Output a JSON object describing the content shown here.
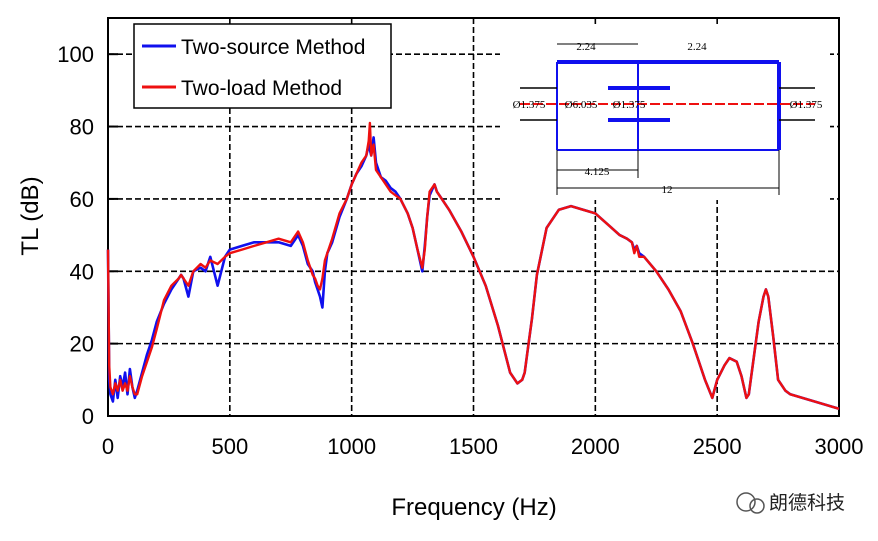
{
  "chart_data": {
    "type": "line",
    "title": "",
    "xlabel": "Frequency (Hz)",
    "ylabel": "TL (dB)",
    "xlim": [
      0,
      3000
    ],
    "ylim": [
      0,
      110
    ],
    "xticks": [
      "0",
      "500",
      "1000",
      "1500",
      "2000",
      "2500",
      "3000"
    ],
    "yticks": [
      "0",
      "20",
      "40",
      "60",
      "80",
      "100"
    ],
    "grid": true,
    "legend_position": "top-left",
    "series": [
      {
        "name": "Two-source Method",
        "color": "#1010ee",
        "x": [
          0,
          5,
          10,
          20,
          30,
          40,
          50,
          60,
          70,
          80,
          90,
          100,
          110,
          120,
          140,
          160,
          180,
          200,
          230,
          260,
          290,
          300,
          310,
          330,
          350,
          380,
          400,
          420,
          450,
          480,
          500,
          550,
          600,
          650,
          700,
          750,
          780,
          800,
          820,
          840,
          850,
          860,
          870,
          880,
          890,
          900,
          920,
          950,
          980,
          1000,
          1020,
          1040,
          1060,
          1070,
          1080,
          1090,
          1100,
          1120,
          1140,
          1160,
          1180,
          1200,
          1230,
          1250,
          1270,
          1290,
          1300,
          1310,
          1320,
          1340,
          1350,
          1370,
          1400,
          1450,
          1500,
          1550,
          1600,
          1650,
          1680,
          1700,
          1710,
          1720,
          1740,
          1760,
          1800,
          1850,
          1900,
          1950,
          2000,
          2050,
          2100,
          2130,
          2150,
          2160,
          2170,
          2180,
          2200,
          2250,
          2300,
          2350,
          2400,
          2450,
          2480,
          2500,
          2530,
          2550,
          2580,
          2600,
          2620,
          2630,
          2650,
          2670,
          2690,
          2700,
          2710,
          2730,
          2750,
          2780,
          2800,
          2850,
          2900,
          2950,
          3000
        ],
        "y": [
          46,
          10,
          6,
          4,
          10,
          5,
          11,
          8,
          12,
          6,
          13,
          8,
          5,
          7,
          12,
          17,
          21,
          26,
          31,
          35,
          38,
          39,
          38,
          33,
          40,
          41,
          40,
          44,
          36,
          44,
          46,
          47,
          48,
          48,
          48,
          47,
          50,
          47,
          42,
          40,
          37,
          35,
          33,
          30,
          40,
          45,
          48,
          55,
          60,
          64,
          67,
          69,
          72,
          75,
          72,
          77,
          70,
          66,
          65,
          63,
          62,
          60,
          56,
          52,
          46,
          40,
          47,
          55,
          61,
          64,
          62,
          60,
          57,
          51,
          44,
          36,
          25,
          12,
          9,
          10,
          12,
          17,
          27,
          39,
          52,
          57,
          58,
          57,
          56,
          53,
          50,
          49,
          48,
          46,
          47,
          45,
          44,
          40,
          35,
          29,
          20,
          10,
          5,
          10,
          14,
          16,
          15,
          11,
          5,
          6,
          16,
          26,
          33,
          35,
          33,
          22,
          10,
          7,
          6,
          5,
          4,
          3,
          2
        ]
      },
      {
        "name": "Two-load Method",
        "color": "#ee1010",
        "x": [
          0,
          5,
          10,
          20,
          30,
          40,
          50,
          60,
          70,
          80,
          90,
          100,
          110,
          120,
          140,
          160,
          180,
          200,
          230,
          260,
          290,
          300,
          310,
          330,
          350,
          380,
          400,
          420,
          450,
          480,
          500,
          550,
          600,
          650,
          700,
          750,
          780,
          800,
          820,
          840,
          850,
          860,
          870,
          880,
          890,
          900,
          920,
          950,
          980,
          1000,
          1020,
          1040,
          1060,
          1070,
          1075,
          1080,
          1090,
          1100,
          1120,
          1140,
          1160,
          1180,
          1200,
          1230,
          1250,
          1270,
          1290,
          1300,
          1310,
          1320,
          1340,
          1350,
          1370,
          1400,
          1450,
          1500,
          1550,
          1600,
          1650,
          1680,
          1700,
          1710,
          1720,
          1740,
          1760,
          1800,
          1850,
          1900,
          1950,
          2000,
          2050,
          2100,
          2130,
          2150,
          2160,
          2170,
          2180,
          2200,
          2250,
          2300,
          2350,
          2400,
          2450,
          2480,
          2500,
          2530,
          2550,
          2580,
          2600,
          2620,
          2630,
          2650,
          2670,
          2690,
          2700,
          2710,
          2730,
          2750,
          2780,
          2800,
          2850,
          2900,
          2950,
          3000
        ],
        "y": [
          46,
          14,
          8,
          6,
          9,
          7,
          10,
          7,
          9,
          7,
          11,
          8,
          6,
          6,
          11,
          15,
          19,
          24,
          32,
          36,
          38,
          39,
          38,
          36,
          40,
          42,
          41,
          43,
          42,
          44,
          45,
          46,
          47,
          48,
          49,
          48,
          51,
          48,
          43,
          39,
          38,
          36,
          35,
          38,
          43,
          45,
          49,
          56,
          60,
          64,
          67,
          70,
          72,
          76,
          81,
          72,
          75,
          68,
          66,
          64,
          62,
          61,
          60,
          56,
          52,
          46,
          41,
          46,
          55,
          62,
          64,
          62,
          60,
          57,
          51,
          44,
          36,
          25,
          12,
          9,
          10,
          12,
          17,
          27,
          39,
          52,
          57,
          58,
          57,
          56,
          53,
          50,
          49,
          48,
          45,
          47,
          44,
          44,
          40,
          35,
          29,
          20,
          10,
          5,
          10,
          14,
          16,
          15,
          11,
          5,
          6,
          16,
          26,
          33,
          35,
          33,
          22,
          10,
          7,
          6,
          5,
          4,
          3,
          2
        ]
      }
    ],
    "inset_labels": [
      "2.24",
      "2.24",
      "Ø1.375",
      "Ø6.035",
      "Ø1.375",
      "Ø1.375",
      "4.125",
      "12"
    ],
    "watermark": "朗德科技"
  }
}
